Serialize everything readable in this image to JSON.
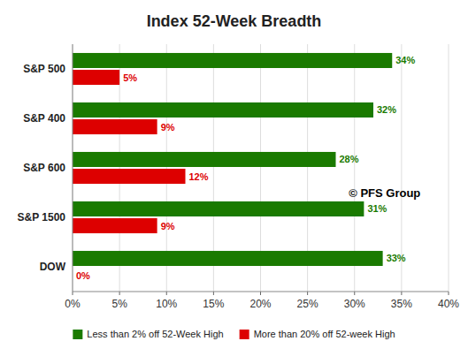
{
  "chart_data": {
    "type": "bar",
    "orientation": "horizontal",
    "title": "Index 52-Week Breadth",
    "categories": [
      "DOW",
      "S&P 1500",
      "S&P 600",
      "S&P 400",
      "S&P 500"
    ],
    "series": [
      {
        "name": "Less than 2% off 52-Week High",
        "color": "#1a7a00",
        "values": [
          33,
          31,
          28,
          32,
          34
        ],
        "value_labels": [
          "33%",
          "31%",
          "28%",
          "32%",
          "34%"
        ]
      },
      {
        "name": "More than 20% off 52-week High",
        "color": "#dd0000",
        "values": [
          0,
          9,
          12,
          9,
          5
        ],
        "value_labels": [
          "0%",
          "9%",
          "12%",
          "9%",
          "5%"
        ]
      }
    ],
    "xlim": [
      0,
      40
    ],
    "xticks": [
      {
        "value": 0,
        "label": "0%"
      },
      {
        "value": 5,
        "label": "5%"
      },
      {
        "value": 10,
        "label": "10%"
      },
      {
        "value": 15,
        "label": "15%"
      },
      {
        "value": 20,
        "label": "20%"
      },
      {
        "value": 25,
        "label": "25%"
      },
      {
        "value": 30,
        "label": "30%"
      },
      {
        "value": 35,
        "label": "35%"
      },
      {
        "value": 40,
        "label": "40%"
      }
    ],
    "annotations": [
      "© PFS Group"
    ],
    "grid": true,
    "legend": "bottom",
    "data_labels": true
  }
}
